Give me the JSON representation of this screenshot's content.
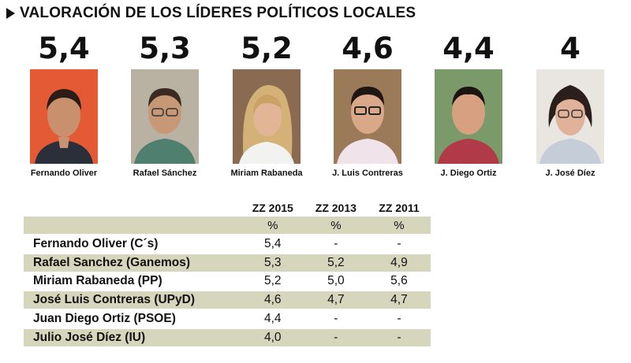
{
  "title": "VALORACIÓN DE LOS LÍDERES POLÍTICOS LOCALES",
  "leaders": [
    {
      "score": "5,4",
      "caption": "Fernando Oliver",
      "photo_bg": "#e35a34"
    },
    {
      "score": "5,3",
      "caption": "Rafael Sánchez",
      "photo_bg": "#b9b2a3"
    },
    {
      "score": "5,2",
      "caption": "Miriam Rabaneda",
      "photo_bg": "#8a6b52"
    },
    {
      "score": "4,6",
      "caption": "J. Luis Contreras",
      "photo_bg": "#9a7a59"
    },
    {
      "score": "4,4",
      "caption": "J. Diego Ortiz",
      "photo_bg": "#7a9a6a"
    },
    {
      "score": "4",
      "caption": "J. José Díez",
      "photo_bg": "#e9e6e2"
    }
  ],
  "table": {
    "headers": [
      "ZZ 2015",
      "ZZ 2013",
      "ZZ 2011"
    ],
    "units": [
      "%",
      "%",
      "%"
    ],
    "rows": [
      {
        "name": "Fernando Oliver (C´s)",
        "v2015": "5,4",
        "v2013": "-",
        "v2011": "-"
      },
      {
        "name": "Rafael Sanchez (Ganemos)",
        "v2015": "5,3",
        "v2013": "5,2",
        "v2011": "4,9"
      },
      {
        "name": "Miriam Rabaneda (PP)",
        "v2015": "5,2",
        "v2013": "5,0",
        "v2011": "5,6"
      },
      {
        "name": "José Luis Contreras (UPyD)",
        "v2015": "4,6",
        "v2013": "4,7",
        "v2011": "4,7"
      },
      {
        "name": "Juan Diego Ortiz (PSOE)",
        "v2015": "4,4",
        "v2013": "-",
        "v2011": "-"
      },
      {
        "name": "Julio José Díez (IU)",
        "v2015": "4,0",
        "v2013": "-",
        "v2011": "-"
      }
    ]
  },
  "chart_data": {
    "type": "table",
    "title": "VALORACIÓN DE LOS LÍDERES POLÍTICOS LOCALES",
    "categories": [
      "Fernando Oliver",
      "Rafael Sánchez",
      "Miriam Rabaneda",
      "J. Luis Contreras",
      "J. Diego Ortiz",
      "J. José Díez"
    ],
    "values": [
      5.4,
      5.3,
      5.2,
      4.6,
      4.4,
      4
    ],
    "series": [
      {
        "name": "ZZ 2015",
        "values": [
          5.4,
          5.3,
          5.2,
          4.6,
          4.4,
          4.0
        ]
      },
      {
        "name": "ZZ 2013",
        "values": [
          null,
          5.2,
          5.0,
          4.7,
          null,
          null
        ]
      },
      {
        "name": "ZZ 2011",
        "values": [
          null,
          4.9,
          5.6,
          4.7,
          null,
          null
        ]
      }
    ]
  }
}
